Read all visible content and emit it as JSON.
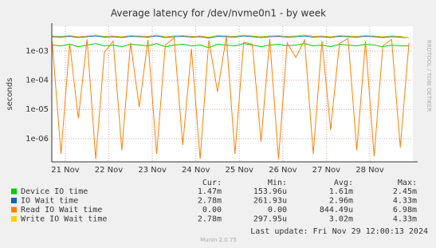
{
  "chart_data": {
    "type": "line",
    "title": "Average latency for /dev/nvme0n1 - by week",
    "y_label": "seconds",
    "side_label": "RRDTOOL / TOBI OETIKER",
    "log_scale": true,
    "grid": true,
    "x": [
      20.7,
      20.9,
      21.1,
      21.3,
      21.5,
      21.7,
      21.9,
      22.1,
      22.3,
      22.5,
      22.7,
      22.9,
      23.1,
      23.3,
      23.5,
      23.7,
      23.9,
      24.1,
      24.3,
      24.5,
      24.7,
      24.9,
      25.1,
      25.3,
      25.5,
      25.7,
      25.9,
      26.1,
      26.3,
      26.5,
      26.7,
      26.9,
      27.1,
      27.3,
      27.5,
      27.7,
      27.9,
      28.1,
      28.3,
      28.5,
      28.7,
      28.9
    ],
    "xlim": [
      20.69,
      28.99
    ],
    "xticks": [
      {
        "value": 21,
        "label": "21 Nov"
      },
      {
        "value": 22,
        "label": "22 Nov"
      },
      {
        "value": 23,
        "label": "23 Nov"
      },
      {
        "value": 24,
        "label": "24 Nov"
      },
      {
        "value": 25,
        "label": "25 Nov"
      },
      {
        "value": 26,
        "label": "26 Nov"
      },
      {
        "value": 27,
        "label": "27 Nov"
      },
      {
        "value": 28,
        "label": "28 Nov"
      }
    ],
    "ylim": [
      1.6e-07,
      0.007
    ],
    "yticks": [
      {
        "value": 1e-06,
        "label": "1e-06"
      },
      {
        "value": 1e-05,
        "label": "1e-05"
      },
      {
        "value": 0.0001,
        "label": "1e-04"
      },
      {
        "value": 0.001,
        "label": "1e-03"
      }
    ],
    "stat_headers": [
      "Cur:",
      "Min:",
      "Avg:",
      "Max:"
    ],
    "series": [
      {
        "name": "Device IO time",
        "color": "#00cc00",
        "values": [
          0.0016,
          0.0015,
          0.0017,
          0.0014,
          0.0016,
          0.0018,
          0.0015,
          0.0016,
          0.0014,
          0.0017,
          0.0016,
          0.0015,
          0.0018,
          0.0014,
          0.0016,
          0.0017,
          0.0015,
          0.0016,
          0.0013,
          0.0017,
          0.0016,
          0.0015,
          0.0018,
          0.0016,
          0.0014,
          0.0016,
          0.0017,
          0.0015,
          0.0016,
          0.0018,
          0.0015,
          0.0016,
          0.0014,
          0.0017,
          0.0016,
          0.0015,
          0.0017,
          0.0016,
          0.0014,
          0.0016,
          0.0015,
          0.0015
        ],
        "stats": [
          "1.47m",
          "153.96u",
          "1.61m",
          "2.45m"
        ]
      },
      {
        "name": "IO Wait time",
        "color": "#0066b3",
        "values": [
          0.0031,
          0.003,
          0.0032,
          0.0029,
          0.0031,
          0.0033,
          0.003,
          0.0031,
          0.0029,
          0.0032,
          0.0031,
          0.003,
          0.0033,
          0.0029,
          0.0031,
          0.0032,
          0.003,
          0.0031,
          0.0028,
          0.0032,
          0.0031,
          0.003,
          0.0033,
          0.0031,
          0.0029,
          0.0031,
          0.0032,
          0.003,
          0.0031,
          0.0033,
          0.003,
          0.0031,
          0.0029,
          0.0032,
          0.0031,
          0.003,
          0.0032,
          0.0031,
          0.0029,
          0.0031,
          0.003,
          0.0028
        ],
        "stats": [
          "2.78m",
          "261.93u",
          "2.96m",
          "4.33m"
        ]
      },
      {
        "name": "Read IO Wait time",
        "color": "#ff8000",
        "values": [
          0.0021,
          3e-07,
          0.0018,
          5e-06,
          0.0025,
          2e-07,
          0.0009,
          0.0022,
          4e-07,
          0.0019,
          1.2e-05,
          0.0024,
          3e-07,
          0.0016,
          0.0028,
          6e-07,
          0.0012,
          2e-07,
          0.0023,
          4e-05,
          0.0031,
          3e-07,
          0.002,
          0.0017,
          8e-07,
          0.0026,
          2e-07,
          0.0019,
          0.0006,
          0.0024,
          3e-07,
          0.0022,
          2e-06,
          0.0018,
          0.0027,
          4e-07,
          0.0021,
          2.5e-07,
          0.0015,
          0.0025,
          5e-07,
          0.0019
        ],
        "stats": [
          "0.00",
          "0.00",
          "844.49u",
          "6.98m"
        ]
      },
      {
        "name": "Write IO Wait time",
        "color": "#ffcc00",
        "values": [
          0.0033,
          0.0032,
          0.0034,
          0.0031,
          0.0033,
          0.0035,
          0.0032,
          0.0033,
          0.0031,
          0.0034,
          0.0033,
          0.0032,
          0.0035,
          0.0031,
          0.0033,
          0.0034,
          0.0032,
          0.0033,
          0.003,
          0.0034,
          0.0033,
          0.0032,
          0.0035,
          0.0033,
          0.0031,
          0.0033,
          0.0034,
          0.0032,
          0.0033,
          0.0035,
          0.0032,
          0.0033,
          0.0031,
          0.0034,
          0.0033,
          0.0032,
          0.0034,
          0.0033,
          0.0031,
          0.0033,
          0.0032,
          0.0028
        ],
        "stats": [
          "2.78m",
          "297.95u",
          "3.02m",
          "4.33m"
        ]
      }
    ],
    "last_update": "Last update: Fri Nov 29 12:00:13 2024",
    "footer": "Munin 2.0.75"
  }
}
